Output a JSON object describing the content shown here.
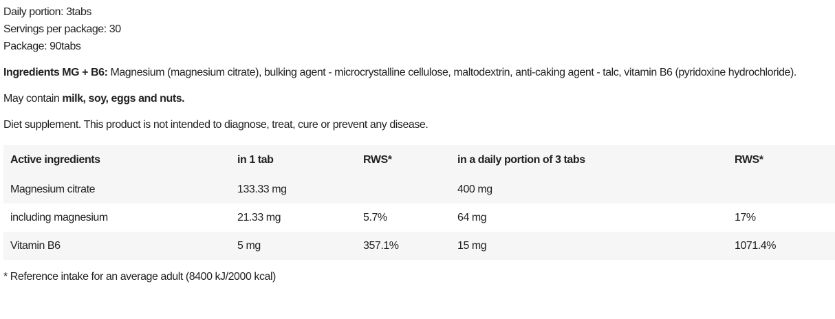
{
  "info": {
    "daily_portion": "Daily portion: 3tabs",
    "servings": "Servings per package: 30",
    "package": "Package: 90tabs"
  },
  "ingredients": {
    "label": "Ingredients MG + B6:",
    "text": " Magnesium (magnesium citrate), bulking agent - microcrystalline cellulose, maltodextrin, anti-caking agent - talc, vitamin B6 (pyridoxine hydrochloride)."
  },
  "allergens": {
    "prefix": "May contain ",
    "bold": "milk, soy, eggs and nuts."
  },
  "disclaimer": "Diet supplement. This product is not intended to diagnose, treat, cure or prevent any disease.",
  "table": {
    "headers": [
      "Active ingredients",
      "in 1 tab",
      "RWS*",
      "in a daily portion of 3 tabs",
      "RWS*"
    ],
    "rows": [
      [
        "Magnesium citrate",
        "133.33 mg",
        "",
        "400 mg",
        ""
      ],
      [
        "including magnesium",
        "21.33 mg",
        "5.7%",
        "64 mg",
        "17%"
      ],
      [
        "Vitamin B6",
        "5 mg",
        "357.1%",
        "15 mg",
        "1071.4%"
      ]
    ]
  },
  "footnote": "* Reference intake for an average adult (8400 kJ/2000 kcal)"
}
